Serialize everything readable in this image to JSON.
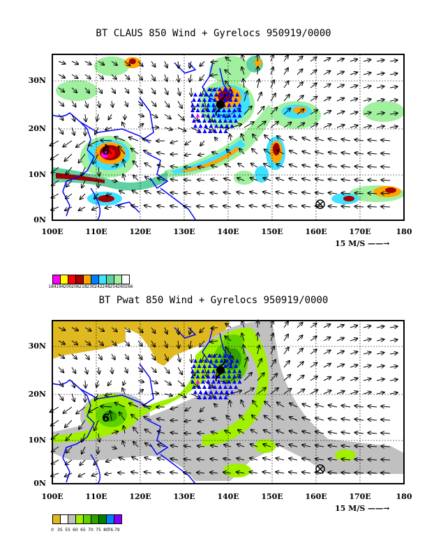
{
  "panels": [
    {
      "title": "BT CLAUS 850 Wind + Gyrelocs 950919/0000",
      "legend_colors": [
        "#ff00ff",
        "#ffff00",
        "#ff0000",
        "#a00000",
        "#ffa500",
        "#0080ff",
        "#40e0ff",
        "#60d0a0",
        "#a0f0a0",
        "#ffffff"
      ],
      "legend_values": [
        "184",
        "194",
        "200",
        "206",
        "218",
        "230",
        "242",
        "248",
        "254",
        "260",
        "266"
      ]
    },
    {
      "title": "BT Pwat 850 Wind + Gyrelocs 950919/0000",
      "legend_colors": [
        "#e0b820",
        "#ffffff",
        "#c0c0c0",
        "#a0f000",
        "#60d000",
        "#30a000",
        "#008000",
        "#0080ff",
        "#8000ff"
      ],
      "legend_values": [
        "0",
        "35",
        "55",
        "60",
        "65",
        "70",
        "75",
        "80",
        "76.79"
      ]
    }
  ],
  "lat_labels": [
    "30N",
    "20N",
    "10N",
    "0N"
  ],
  "lon_labels": [
    "100E",
    "110E",
    "120E",
    "130E",
    "140E",
    "150E",
    "160E",
    "170E",
    "180"
  ],
  "scale_label": "15 M/S",
  "gyre_markers": {
    "cyclone_symbol": "typhoon-symbol-icon",
    "cross_symbol": "circle-x-icon",
    "triangle_color": "#0000ff",
    "highlight_triangle_color": "#ff00ff"
  }
}
